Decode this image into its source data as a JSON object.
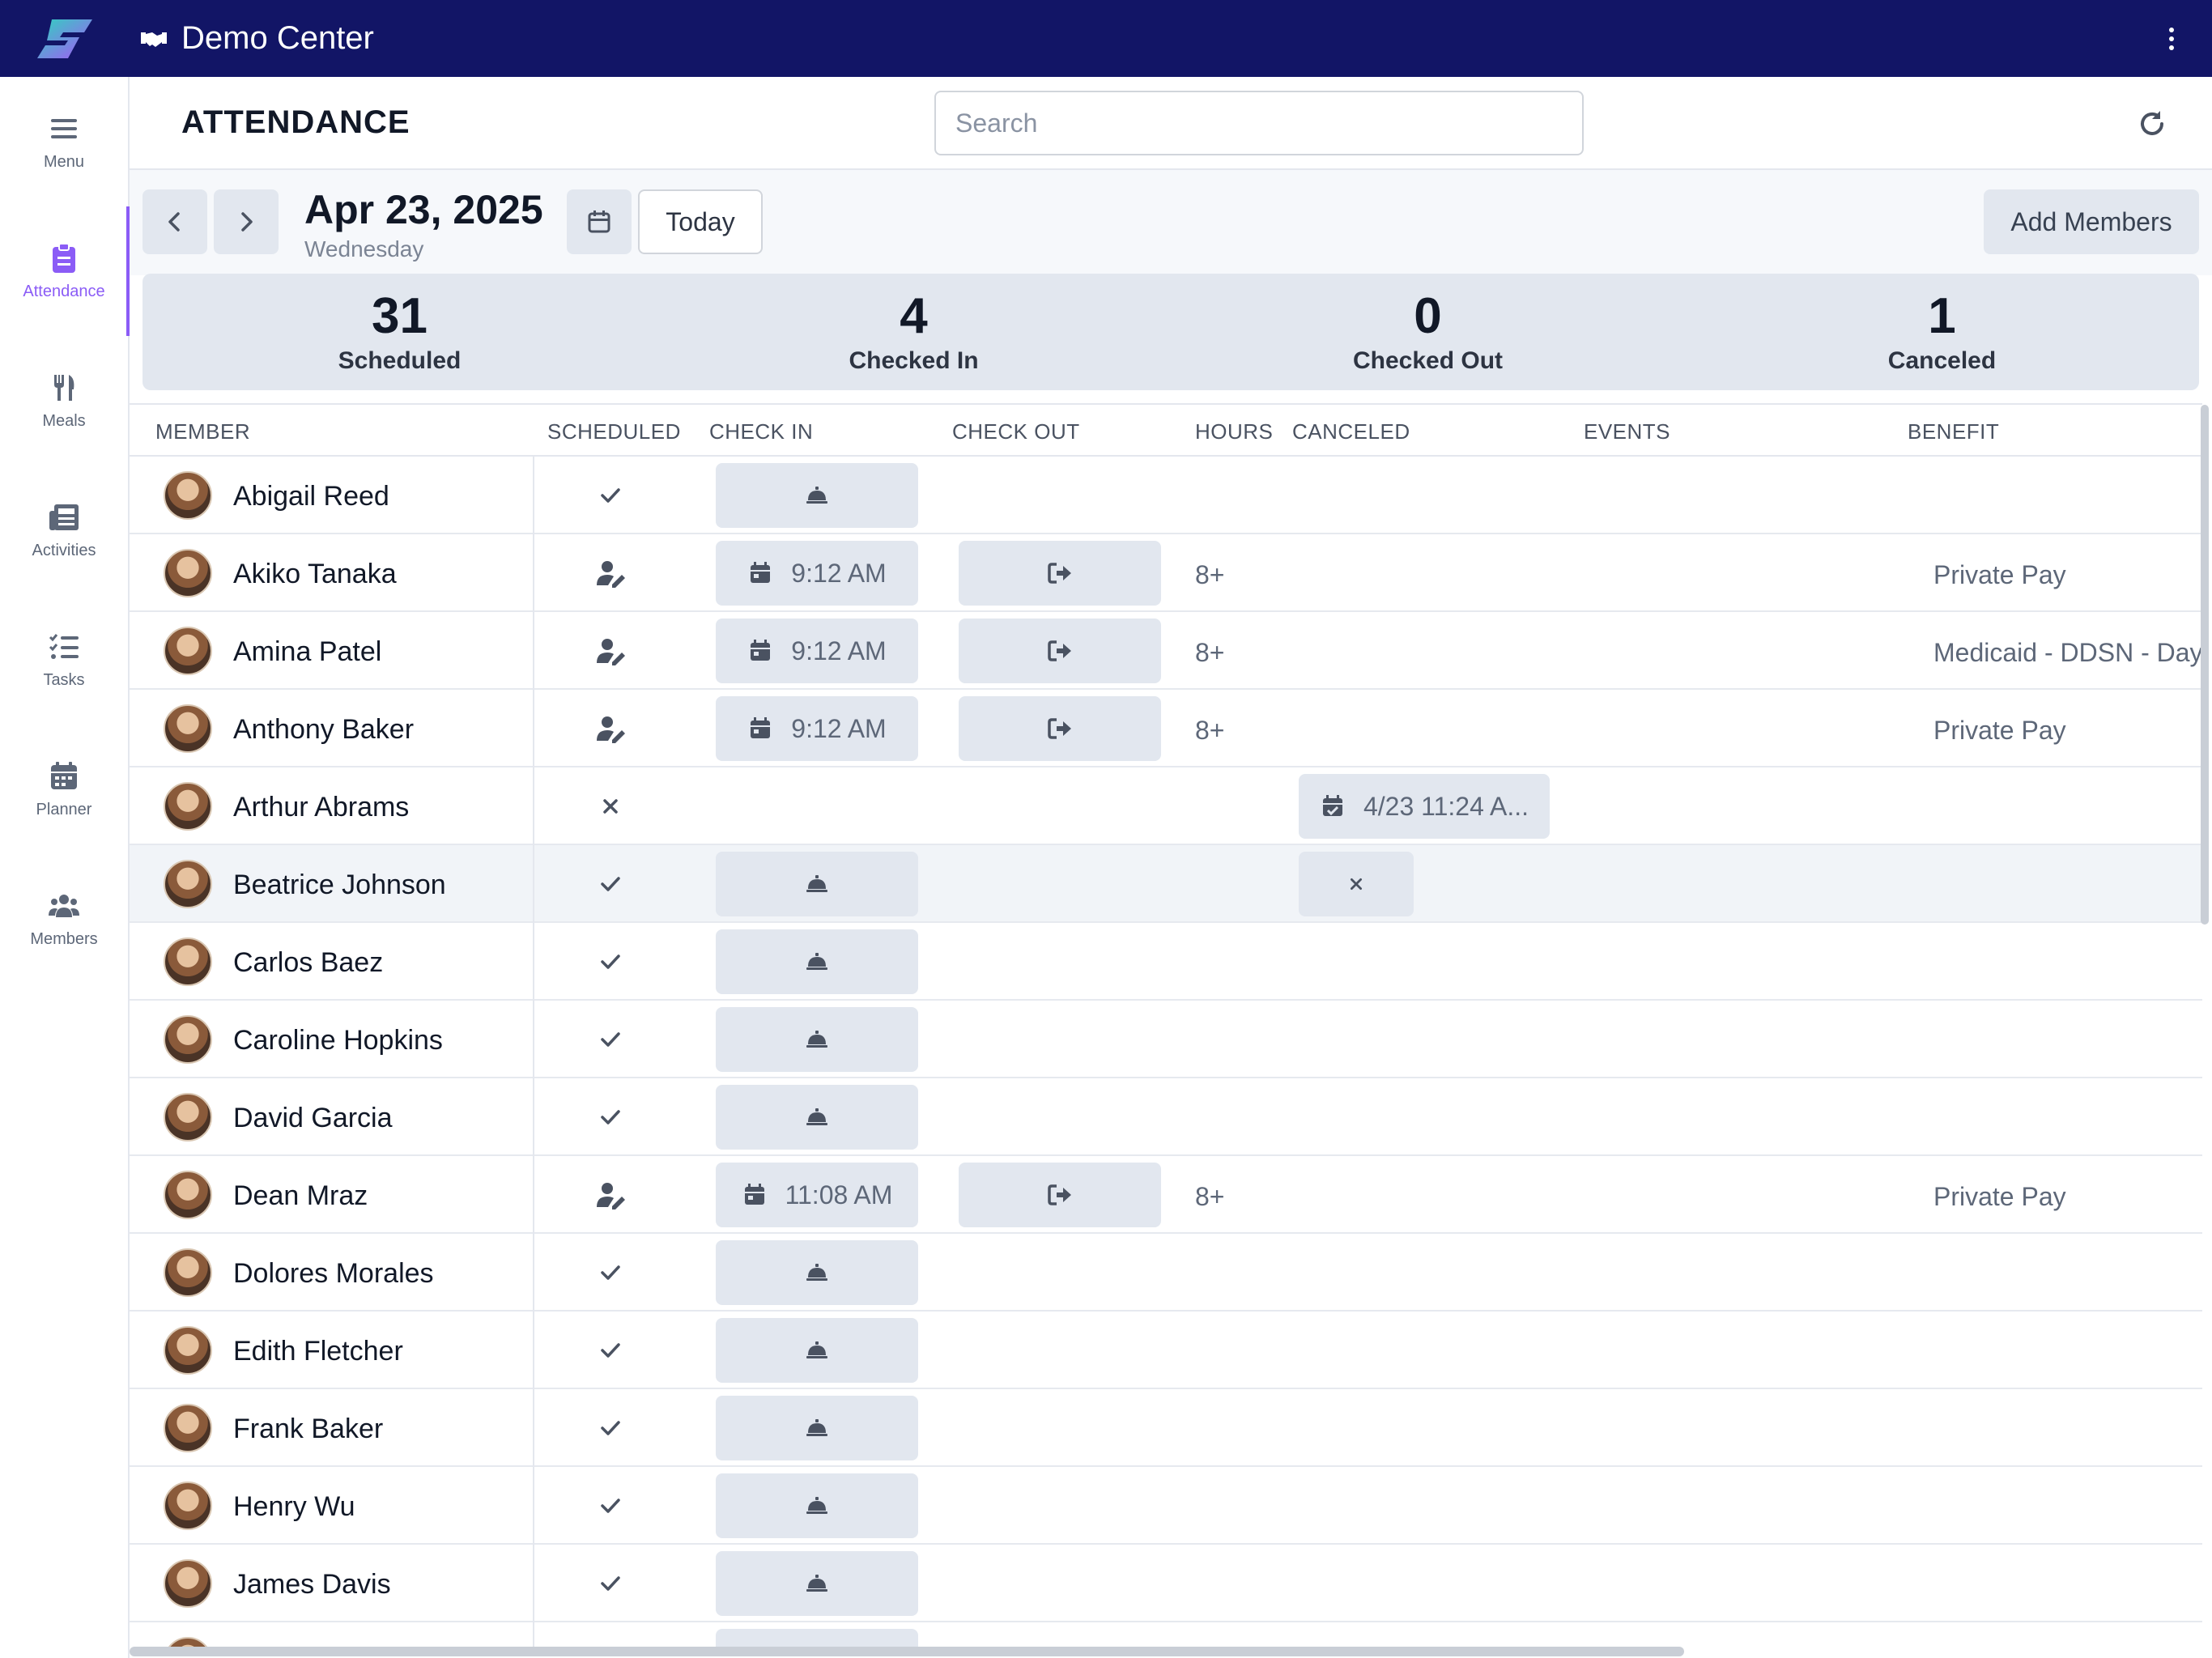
{
  "app": {
    "title": "Demo Center"
  },
  "nav": {
    "items": [
      {
        "label": "Menu",
        "icon": "menu-icon"
      },
      {
        "label": "Attendance",
        "icon": "clipboard-icon"
      },
      {
        "label": "Meals",
        "icon": "utensils-icon"
      },
      {
        "label": "Activities",
        "icon": "newspaper-icon"
      },
      {
        "label": "Tasks",
        "icon": "list-check-icon"
      },
      {
        "label": "Planner",
        "icon": "calendar-icon"
      },
      {
        "label": "Members",
        "icon": "users-icon"
      }
    ],
    "active": "Attendance"
  },
  "header": {
    "title": "ATTENDANCE",
    "search_placeholder": "Search"
  },
  "toolbar": {
    "date": "Apr 23, 2025",
    "weekday": "Wednesday",
    "today_label": "Today",
    "add_members_label": "Add Members"
  },
  "stats": [
    {
      "value": "31",
      "label": "Scheduled"
    },
    {
      "value": "4",
      "label": "Checked In"
    },
    {
      "value": "0",
      "label": "Checked Out"
    },
    {
      "value": "1",
      "label": "Canceled"
    }
  ],
  "table": {
    "columns": [
      "MEMBER",
      "SCHEDULED",
      "CHECK IN",
      "CHECK OUT",
      "HOURS",
      "CANCELED",
      "EVENTS",
      "BENEFIT"
    ],
    "rows": [
      {
        "name": "Abigail Reed",
        "scheduled": "check",
        "check_in": "",
        "check_out": null,
        "hours": "",
        "canceled": null,
        "benefit": ""
      },
      {
        "name": "Akiko Tanaka",
        "scheduled": "user-edit",
        "check_in": "9:12 AM",
        "check_out": "",
        "hours": "8+",
        "canceled": null,
        "benefit": "Private Pay"
      },
      {
        "name": "Amina Patel",
        "scheduled": "user-edit",
        "check_in": "9:12 AM",
        "check_out": "",
        "hours": "8+",
        "canceled": null,
        "benefit": "Medicaid - DDSN - Day"
      },
      {
        "name": "Anthony Baker",
        "scheduled": "user-edit",
        "check_in": "9:12 AM",
        "check_out": "",
        "hours": "8+",
        "canceled": null,
        "benefit": "Private Pay"
      },
      {
        "name": "Arthur Abrams",
        "scheduled": "x",
        "check_in": null,
        "check_out": null,
        "hours": "",
        "canceled": "4/23 11:24 A...",
        "benefit": ""
      },
      {
        "name": "Beatrice Johnson",
        "scheduled": "check",
        "check_in": "",
        "check_out": null,
        "hours": "",
        "canceled": "x",
        "benefit": ""
      },
      {
        "name": "Carlos Baez",
        "scheduled": "check",
        "check_in": "",
        "check_out": null,
        "hours": "",
        "canceled": null,
        "benefit": ""
      },
      {
        "name": "Caroline Hopkins",
        "scheduled": "check",
        "check_in": "",
        "check_out": null,
        "hours": "",
        "canceled": null,
        "benefit": ""
      },
      {
        "name": "David Garcia",
        "scheduled": "check",
        "check_in": "",
        "check_out": null,
        "hours": "",
        "canceled": null,
        "benefit": ""
      },
      {
        "name": "Dean Mraz",
        "scheduled": "user-edit",
        "check_in": "11:08 AM",
        "check_out": "",
        "hours": "8+",
        "canceled": null,
        "benefit": "Private Pay"
      },
      {
        "name": "Dolores Morales",
        "scheduled": "check",
        "check_in": "",
        "check_out": null,
        "hours": "",
        "canceled": null,
        "benefit": ""
      },
      {
        "name": "Edith Fletcher",
        "scheduled": "check",
        "check_in": "",
        "check_out": null,
        "hours": "",
        "canceled": null,
        "benefit": ""
      },
      {
        "name": "Frank Baker",
        "scheduled": "check",
        "check_in": "",
        "check_out": null,
        "hours": "",
        "canceled": null,
        "benefit": ""
      },
      {
        "name": "Henry Wu",
        "scheduled": "check",
        "check_in": "",
        "check_out": null,
        "hours": "",
        "canceled": null,
        "benefit": ""
      },
      {
        "name": "James Davis",
        "scheduled": "check",
        "check_in": "",
        "check_out": null,
        "hours": "",
        "canceled": null,
        "benefit": ""
      },
      {
        "name": "",
        "scheduled": "",
        "check_in": "",
        "check_out": null,
        "hours": "",
        "canceled": null,
        "benefit": ""
      }
    ]
  },
  "colors": {
    "topbar": "#121566",
    "accent": "#8b5cf6",
    "button_bg": "#e2e7ef"
  }
}
